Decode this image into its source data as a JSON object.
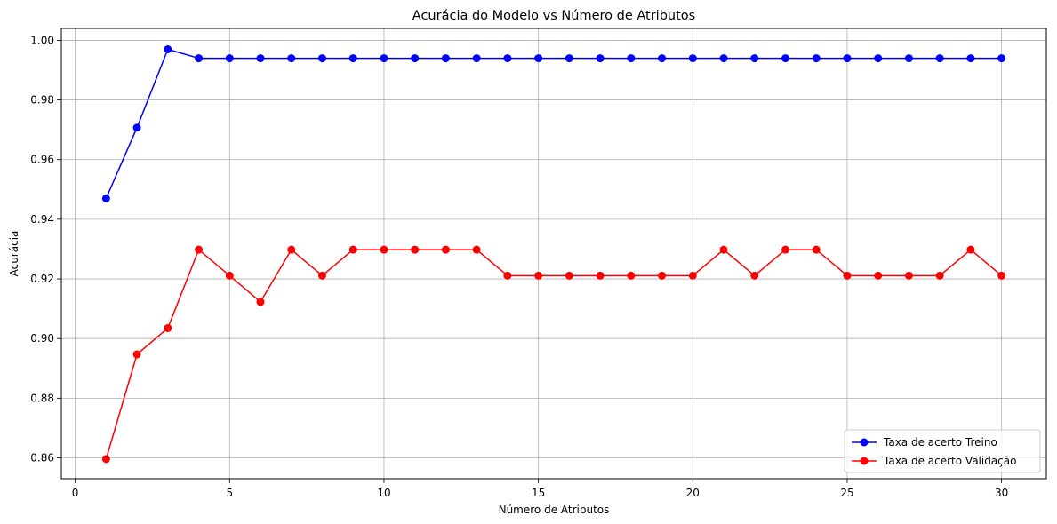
{
  "chart_data": {
    "type": "line",
    "title": "Acurácia do Modelo vs Número de Atributos",
    "xlabel": "Número de Atributos",
    "ylabel": "Acurácia",
    "xlim": [
      -0.45,
      31.45
    ],
    "ylim": [
      0.853,
      1.004
    ],
    "xticks": [
      0,
      5,
      10,
      15,
      20,
      25,
      30
    ],
    "xtick_labels": [
      "0",
      "5",
      "10",
      "15",
      "20",
      "25",
      "30"
    ],
    "yticks": [
      0.86,
      0.88,
      0.9,
      0.92,
      0.94,
      0.96,
      0.98,
      1.0
    ],
    "ytick_labels": [
      "0.86",
      "0.88",
      "0.90",
      "0.92",
      "0.94",
      "0.96",
      "0.98",
      "1.00"
    ],
    "grid": true,
    "legend_position": "bottom-right",
    "x": [
      1,
      2,
      3,
      4,
      5,
      6,
      7,
      8,
      9,
      10,
      11,
      12,
      13,
      14,
      15,
      16,
      17,
      18,
      19,
      20,
      21,
      22,
      23,
      24,
      25,
      26,
      27,
      28,
      29,
      30
    ],
    "series": [
      {
        "name": "Taxa de acerto Treino",
        "color": "#0000ff",
        "marker": "circle",
        "values": [
          0.947,
          0.9707,
          0.997,
          0.994,
          0.994,
          0.994,
          0.994,
          0.994,
          0.994,
          0.994,
          0.994,
          0.994,
          0.994,
          0.994,
          0.994,
          0.994,
          0.994,
          0.994,
          0.994,
          0.994,
          0.994,
          0.994,
          0.994,
          0.994,
          0.994,
          0.994,
          0.994,
          0.994,
          0.994,
          0.994
        ]
      },
      {
        "name": "Taxa de acerto Validação",
        "color": "#ff0000",
        "marker": "circle",
        "values": [
          0.8596,
          0.8947,
          0.9035,
          0.9298,
          0.9211,
          0.9123,
          0.9298,
          0.9211,
          0.9298,
          0.9298,
          0.9298,
          0.9298,
          0.9298,
          0.9211,
          0.9211,
          0.9211,
          0.9211,
          0.9211,
          0.9211,
          0.9211,
          0.9298,
          0.9211,
          0.9298,
          0.9298,
          0.9211,
          0.9211,
          0.9211,
          0.9211,
          0.9298,
          0.9211
        ]
      }
    ]
  }
}
